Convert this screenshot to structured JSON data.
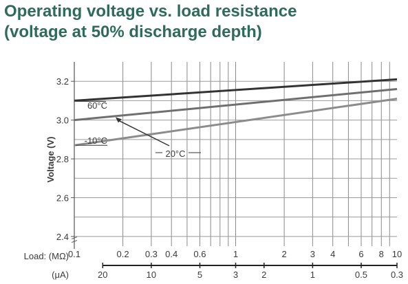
{
  "title": {
    "line1": "Operating voltage vs. load resistance",
    "line2": "(voltage at 50% discharge depth)"
  },
  "chart_data": {
    "type": "line",
    "x_scale": "log",
    "x_unit_label": "Load: (MΩ)",
    "x2_unit_label": "(μA)",
    "ylabel": "Voltage (V)",
    "xlim": [
      0.1,
      10
    ],
    "ylim": [
      2.35,
      3.3
    ],
    "grid": true,
    "x_ticks": [
      {
        "value": 0.1,
        "label": "0.1"
      },
      {
        "value": 0.2,
        "label": "0.2"
      },
      {
        "value": 0.3,
        "label": "0.3"
      },
      {
        "value": 0.4,
        "label": "0.4"
      },
      {
        "value": 0.6,
        "label": "0.6"
      },
      {
        "value": 1,
        "label": "1"
      },
      {
        "value": 2,
        "label": "2"
      },
      {
        "value": 3,
        "label": "3"
      },
      {
        "value": 4,
        "label": "4"
      },
      {
        "value": 6,
        "label": "6"
      },
      {
        "value": 8,
        "label": "8"
      },
      {
        "value": 10,
        "label": "10"
      }
    ],
    "x2_ticks": [
      {
        "value": 0.15,
        "label": "20"
      },
      {
        "value": 0.3,
        "label": "10"
      },
      {
        "value": 0.6,
        "label": "5"
      },
      {
        "value": 1,
        "label": "3"
      },
      {
        "value": 1.5,
        "label": "2"
      },
      {
        "value": 3,
        "label": "1"
      },
      {
        "value": 6,
        "label": "0.5"
      },
      {
        "value": 10,
        "label": "0.3"
      }
    ],
    "y_ticks": [
      2.4,
      2.6,
      2.8,
      3.0,
      3.2
    ],
    "y_tick_labels": [
      "2.4",
      "2.6",
      "2.8",
      "3.0",
      "3.2"
    ],
    "series": [
      {
        "name": "60°C",
        "color": "#333333",
        "x": [
          0.1,
          10
        ],
        "y": [
          3.1,
          3.21
        ]
      },
      {
        "name": "20°C",
        "color": "#6f6f6f",
        "x": [
          0.1,
          10
        ],
        "y": [
          3.0,
          3.16
        ]
      },
      {
        "name": "-10°C",
        "color": "#8c8c8c",
        "x": [
          0.1,
          10
        ],
        "y": [
          2.87,
          3.11
        ]
      }
    ]
  }
}
